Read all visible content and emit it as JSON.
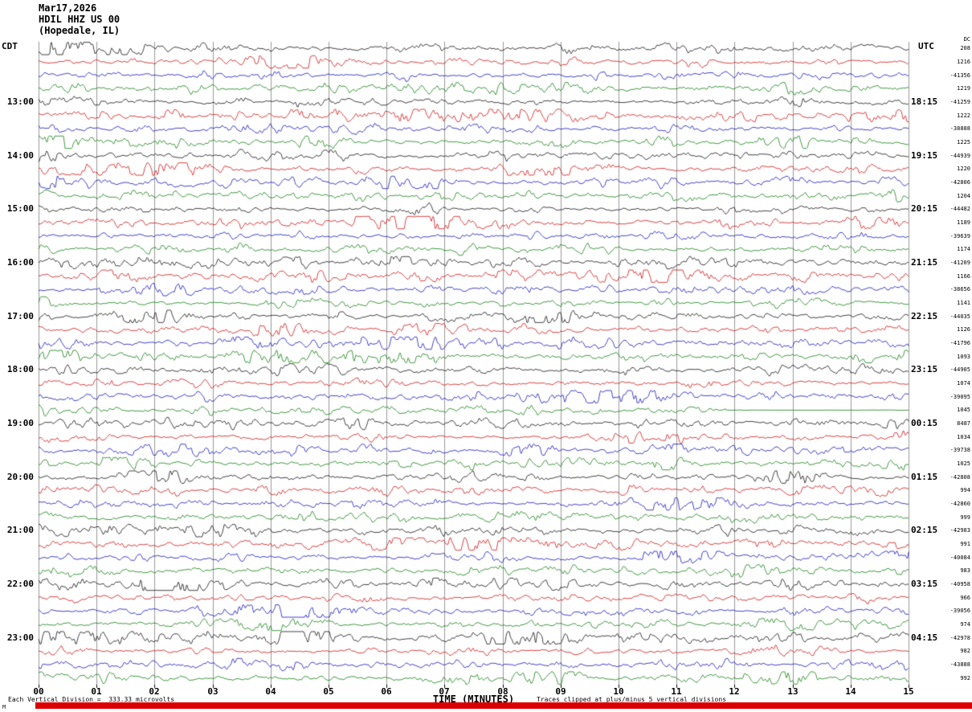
{
  "header": {
    "date": "Mar17,2026",
    "station": "HDIL HHZ US 00",
    "location": "(Hopedale, IL)"
  },
  "axes": {
    "left_tz": "CDT",
    "right_tz": "UTC",
    "right_header": "DC",
    "x_label": "TIME (MINUTES)",
    "x_ticks": [
      "00",
      "01",
      "02",
      "03",
      "04",
      "05",
      "06",
      "07",
      "08",
      "09",
      "10",
      "11",
      "12",
      "13",
      "14",
      "15"
    ]
  },
  "rows": [
    {
      "cdt": "",
      "utc": "",
      "value": "208"
    },
    {
      "cdt": "",
      "utc": "",
      "value": "1216"
    },
    {
      "cdt": "",
      "utc": "",
      "value": "-41356"
    },
    {
      "cdt": "",
      "utc": "",
      "value": "1219"
    },
    {
      "cdt": "13:00",
      "utc": "18:15",
      "value": "-41259"
    },
    {
      "cdt": "",
      "utc": "",
      "value": "1222"
    },
    {
      "cdt": "",
      "utc": "",
      "value": "-38888"
    },
    {
      "cdt": "",
      "utc": "",
      "value": "1225"
    },
    {
      "cdt": "14:00",
      "utc": "19:15",
      "value": "-44939"
    },
    {
      "cdt": "",
      "utc": "",
      "value": "1220"
    },
    {
      "cdt": "",
      "utc": "",
      "value": "-42806"
    },
    {
      "cdt": "",
      "utc": "",
      "value": "1204"
    },
    {
      "cdt": "15:00",
      "utc": "20:15",
      "value": "-44482"
    },
    {
      "cdt": "",
      "utc": "",
      "value": "1189"
    },
    {
      "cdt": "",
      "utc": "",
      "value": "-39639"
    },
    {
      "cdt": "",
      "utc": "",
      "value": "1174"
    },
    {
      "cdt": "16:00",
      "utc": "21:15",
      "value": "-41209"
    },
    {
      "cdt": "",
      "utc": "",
      "value": "1166"
    },
    {
      "cdt": "",
      "utc": "",
      "value": "-38656"
    },
    {
      "cdt": "",
      "utc": "",
      "value": "1141"
    },
    {
      "cdt": "17:00",
      "utc": "22:15",
      "value": "-44035"
    },
    {
      "cdt": "",
      "utc": "",
      "value": "1126"
    },
    {
      "cdt": "",
      "utc": "",
      "value": "-41796"
    },
    {
      "cdt": "",
      "utc": "",
      "value": "1093"
    },
    {
      "cdt": "18:00",
      "utc": "23:15",
      "value": "-44905"
    },
    {
      "cdt": "",
      "utc": "",
      "value": "1074"
    },
    {
      "cdt": "",
      "utc": "",
      "value": "-39095"
    },
    {
      "cdt": "",
      "utc": "",
      "value": "1045"
    },
    {
      "cdt": "19:00",
      "utc": "00:15",
      "value": "8487"
    },
    {
      "cdt": "",
      "utc": "",
      "value": "1034"
    },
    {
      "cdt": "",
      "utc": "",
      "value": "-39738"
    },
    {
      "cdt": "",
      "utc": "",
      "value": "1025"
    },
    {
      "cdt": "20:00",
      "utc": "01:15",
      "value": "-42808"
    },
    {
      "cdt": "",
      "utc": "",
      "value": "994"
    },
    {
      "cdt": "",
      "utc": "",
      "value": "-42860"
    },
    {
      "cdt": "",
      "utc": "",
      "value": "999"
    },
    {
      "cdt": "21:00",
      "utc": "02:15",
      "value": "-42983"
    },
    {
      "cdt": "",
      "utc": "",
      "value": "991"
    },
    {
      "cdt": "",
      "utc": "",
      "value": "-40084"
    },
    {
      "cdt": "",
      "utc": "",
      "value": "983"
    },
    {
      "cdt": "22:00",
      "utc": "03:15",
      "value": "-40958"
    },
    {
      "cdt": "",
      "utc": "",
      "value": "966"
    },
    {
      "cdt": "",
      "utc": "",
      "value": "-39056"
    },
    {
      "cdt": "",
      "utc": "",
      "value": "974"
    },
    {
      "cdt": "23:00",
      "utc": "04:15",
      "value": "-42978"
    },
    {
      "cdt": "",
      "utc": "",
      "value": "982"
    },
    {
      "cdt": "",
      "utc": "",
      "value": "-43888"
    },
    {
      "cdt": "",
      "utc": "",
      "value": "992"
    }
  ],
  "footer": {
    "left_note": "Each Vertical Division =  333.33 microvolts",
    "right_note": "Traces clipped at plus/minus 5 vertical divisions",
    "corner_mark": "M"
  },
  "colors": {
    "traces": [
      "#000000",
      "#cc0000",
      "#0000bb",
      "#007700"
    ],
    "grid": "#999999",
    "bar": "#dd0000"
  },
  "chart_data": {
    "type": "line",
    "subtype": "seismogram-helicorder",
    "title": "HDIL HHZ US 00 (Hopedale, IL) Mar17,2026",
    "xlabel": "TIME (MINUTES)",
    "x_range": [
      0,
      15
    ],
    "minutes_per_row": 15,
    "num_rows": 48,
    "first_row_start_cdt": "12:00",
    "last_row_start_cdt": "23:45",
    "trace_color_cycle": [
      "black",
      "red",
      "blue",
      "green"
    ],
    "left_hour_labels_cdt": [
      "13:00",
      "14:00",
      "15:00",
      "16:00",
      "17:00",
      "18:00",
      "19:00",
      "20:00",
      "21:00",
      "22:00",
      "23:00"
    ],
    "right_hour_labels_utc": [
      "18:15",
      "19:15",
      "20:15",
      "21:15",
      "22:15",
      "23:15",
      "00:15",
      "01:15",
      "02:15",
      "03:15",
      "04:15"
    ],
    "row_right_values": [
      208,
      1216,
      -41356,
      1219,
      -41259,
      1222,
      -38888,
      1225,
      -44939,
      1220,
      -42806,
      1204,
      -44482,
      1189,
      -39639,
      1174,
      -41209,
      1166,
      -38656,
      1141,
      -44035,
      1126,
      -41796,
      1093,
      -44905,
      1074,
      -39095,
      1045,
      8487,
      1034,
      -39738,
      1025,
      -42808,
      994,
      -42860,
      999,
      -42983,
      991,
      -40084,
      983,
      -40958,
      966,
      -39056,
      974,
      -42978,
      982,
      -43888,
      992
    ],
    "vertical_division_microvolts": 333.33,
    "clip_divisions": 5,
    "waveform_note": "continuous microseismic background noise; traces are pseudo-random recreations of noisy seismic signal per 15-minute row"
  }
}
